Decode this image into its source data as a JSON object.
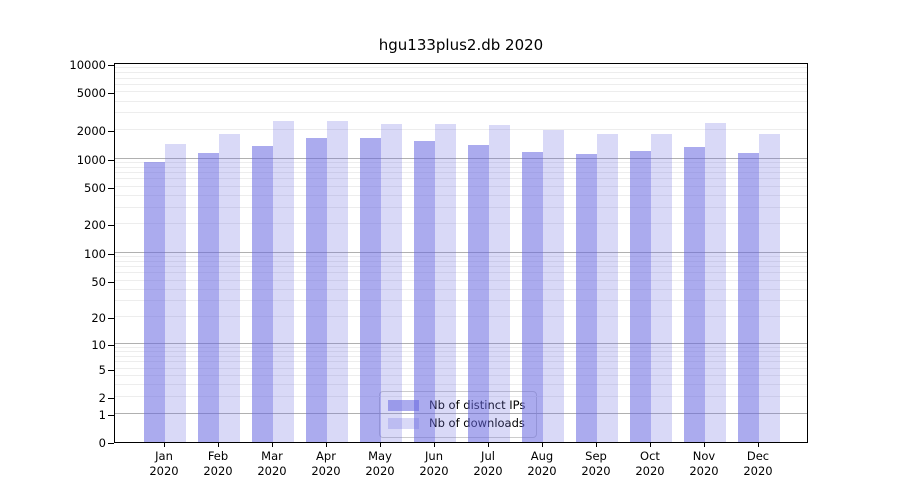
{
  "title": "hgu133plus2.db 2020",
  "colors": {
    "bar_base": "#6666e0",
    "bar_dark_rgba": "rgba(102,102,224,0.55)",
    "bar_light_rgba": "rgba(102,102,224,0.25)",
    "grid_minor": "#ededed",
    "grid_major": "#b0b0b0",
    "axis": "#000000"
  },
  "legend": {
    "items": [
      {
        "label": "Nb of distinct IPs",
        "swatch": "dark"
      },
      {
        "label": "Nb of downloads",
        "swatch": "light"
      }
    ]
  },
  "chart_data": {
    "type": "bar",
    "title": "hgu133plus2.db 2020",
    "categories": [
      "Jan 2020",
      "Feb 2020",
      "Mar 2020",
      "Apr 2020",
      "May 2020",
      "Jun 2020",
      "Jul 2020",
      "Aug 2020",
      "Sep 2020",
      "Oct 2020",
      "Nov 2020",
      "Dec 2020"
    ],
    "series": [
      {
        "name": "Nb of distinct IPs",
        "values": [
          920,
          1140,
          1370,
          1640,
          1630,
          1530,
          1400,
          1180,
          1130,
          1200,
          1330,
          1140
        ]
      },
      {
        "name": "Nb of downloads",
        "values": [
          1440,
          1830,
          2480,
          2520,
          2320,
          2330,
          2290,
          1980,
          1840,
          1810,
          2390,
          1830
        ]
      }
    ],
    "xlabel": "",
    "ylabel": "",
    "yscale": "log10(value+1)",
    "ylim": [
      0,
      10000
    ],
    "yticks": [
      0,
      1,
      2,
      5,
      10,
      20,
      50,
      100,
      200,
      500,
      1000,
      2000,
      5000,
      10000
    ],
    "grid": "horizontal, minor lines each decade step, darker lines at powers of 10",
    "legend_position": "bottom-center-inside"
  }
}
